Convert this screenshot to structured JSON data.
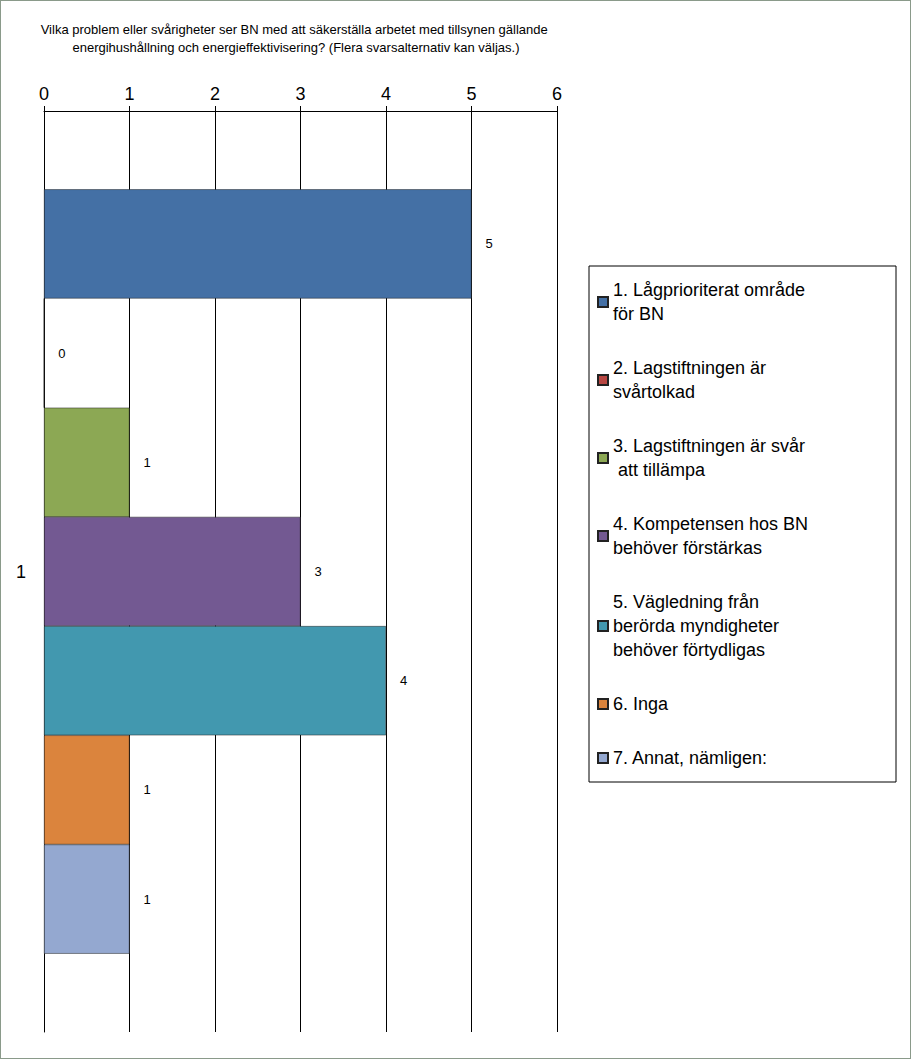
{
  "chart_data": {
    "type": "bar",
    "orientation": "horizontal",
    "title": "Vilka problem eller svårigheter ser BN med att säkerställa arbetet med tillsynen gällande energihushållning och energieffektivisering? (Flera svarsalternativ kan väljas.)",
    "categories": [
      "1"
    ],
    "series": [
      {
        "name": "1. Lågprioriterat område för BN",
        "color": "#4470a5",
        "values": [
          5
        ]
      },
      {
        "name": "2. Lagstiftningen är svårtolkad",
        "color": "#b84743",
        "values": [
          0
        ]
      },
      {
        "name": "3. Lagstiftningen är svår att tillämpa",
        "color": "#8ca854",
        "values": [
          1
        ]
      },
      {
        "name": "4. Kompetensen hos BN behöver förstärkas",
        "color": "#735992",
        "values": [
          3
        ]
      },
      {
        "name": "5. Vägledning från berörda myndigheter behöver förtydligas",
        "color": "#4298af",
        "values": [
          4
        ]
      },
      {
        "name": "6. Inga",
        "color": "#db843d",
        "values": [
          1
        ]
      },
      {
        "name": "7. Annat, nämligen:",
        "color": "#94a8d0",
        "values": [
          1
        ]
      }
    ],
    "xlim": [
      0,
      6
    ],
    "xticks": [
      0,
      1,
      2,
      3,
      4,
      5,
      6
    ],
    "grid": true,
    "legend": "right",
    "data_labels": true
  }
}
